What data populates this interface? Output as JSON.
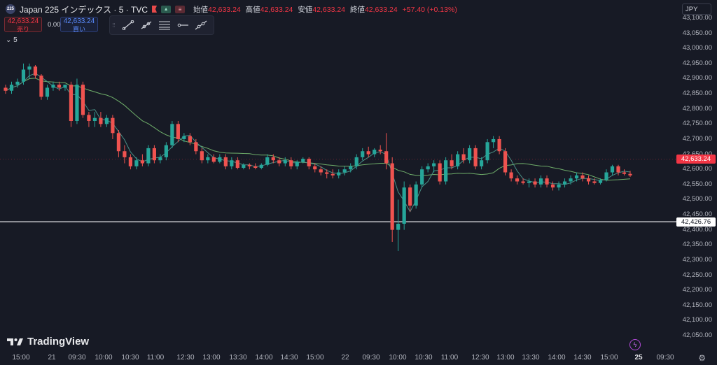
{
  "header": {
    "symbol_badge": "225",
    "title": "Japan 225 インデックス · 5 · TVC",
    "ohlc": [
      {
        "label": "始値",
        "value": "42,633.24"
      },
      {
        "label": "高値",
        "value": "42,633.24"
      },
      {
        "label": "安値",
        "value": "42,633.24"
      },
      {
        "label": "終値",
        "value": "42,633.24"
      }
    ],
    "change": "+57.40 (+0.13%)"
  },
  "trade": {
    "sell_price": "42,633.24",
    "sell_label": "売り",
    "spread": "0.00",
    "buy_price": "42,633.24",
    "buy_label": "買い"
  },
  "interval_label": "5",
  "currency": "JPY",
  "current_price_label": "42,633.24",
  "line_price_label": "42,426.76",
  "brand": "TradingView",
  "colors": {
    "up": "#26a69a",
    "down": "#ef5350",
    "ma_fast": "#4a8f86",
    "ma_slow": "#6fae6a",
    "background": "#171a25"
  },
  "chart_data": {
    "type": "candlestick",
    "ylim": [
      42025,
      43150
    ],
    "y_ticks": [
      43100,
      43050,
      43000,
      42950,
      42900,
      42850,
      42800,
      42750,
      42700,
      42650,
      42600,
      42550,
      42500,
      42450,
      42400,
      42350,
      42300,
      42250,
      42200,
      42150,
      42100,
      42050
    ],
    "y_tick_labels": [
      "43,100.00",
      "43,050.00",
      "43,000.00",
      "42,950.00",
      "42,900.00",
      "42,850.00",
      "42,800.00",
      "42,750.00",
      "42,700.00",
      "42,650.00",
      "42,600.00",
      "42,550.00",
      "42,500.00",
      "42,450.00",
      "42,400.00",
      "42,350.00",
      "42,300.00",
      "42,250.00",
      "42,200.00",
      "42,150.00",
      "42,100.00",
      "42,050.00"
    ],
    "x_labels": [
      {
        "label": "15:00",
        "bold": false
      },
      {
        "label": "21",
        "bold": false
      },
      {
        "label": "09:30",
        "bold": false
      },
      {
        "label": "10:00",
        "bold": false
      },
      {
        "label": "10:30",
        "bold": false
      },
      {
        "label": "11:00",
        "bold": false
      },
      {
        "label": "12:30",
        "bold": false
      },
      {
        "label": "13:00",
        "bold": false
      },
      {
        "label": "13:30",
        "bold": false
      },
      {
        "label": "14:00",
        "bold": false
      },
      {
        "label": "14:30",
        "bold": false
      },
      {
        "label": "15:00",
        "bold": false
      },
      {
        "label": "22",
        "bold": false
      },
      {
        "label": "09:30",
        "bold": false
      },
      {
        "label": "10:00",
        "bold": false
      },
      {
        "label": "10:30",
        "bold": false
      },
      {
        "label": "11:00",
        "bold": false
      },
      {
        "label": "12:30",
        "bold": false
      },
      {
        "label": "13:00",
        "bold": false
      },
      {
        "label": "13:30",
        "bold": false
      },
      {
        "label": "14:00",
        "bold": false
      },
      {
        "label": "14:30",
        "bold": false
      },
      {
        "label": "15:00",
        "bold": false
      },
      {
        "label": "25",
        "bold": true
      },
      {
        "label": "09:30",
        "bold": false
      }
    ],
    "current_price": 42633.24,
    "horizontal_line": 42426.76,
    "candles": [
      [
        42870,
        42880,
        42850,
        42860
      ],
      [
        42860,
        42890,
        42850,
        42880
      ],
      [
        42880,
        42900,
        42870,
        42890
      ],
      [
        42890,
        42950,
        42880,
        42930
      ],
      [
        42930,
        42950,
        42900,
        42940
      ],
      [
        42940,
        42945,
        42900,
        42910
      ],
      [
        42910,
        42915,
        42830,
        42840
      ],
      [
        42840,
        42880,
        42830,
        42870
      ],
      [
        42870,
        42890,
        42860,
        42880
      ],
      [
        42880,
        42890,
        42860,
        42870
      ],
      [
        42870,
        42880,
        42860,
        42880
      ],
      [
        42880,
        42890,
        42740,
        42760
      ],
      [
        42760,
        42900,
        42750,
        42880
      ],
      [
        42880,
        42890,
        42770,
        42780
      ],
      [
        42780,
        42790,
        42740,
        42760
      ],
      [
        42760,
        42790,
        42740,
        42770
      ],
      [
        42770,
        42790,
        42740,
        42750
      ],
      [
        42750,
        42780,
        42740,
        42770
      ],
      [
        42770,
        42780,
        42700,
        42720
      ],
      [
        42720,
        42730,
        42640,
        42660
      ],
      [
        42660,
        42680,
        42620,
        42640
      ],
      [
        42640,
        42650,
        42600,
        42610
      ],
      [
        42610,
        42640,
        42600,
        42630
      ],
      [
        42630,
        42650,
        42610,
        42620
      ],
      [
        42620,
        42680,
        42610,
        42670
      ],
      [
        42670,
        42680,
        42620,
        42630
      ],
      [
        42630,
        42650,
        42620,
        42640
      ],
      [
        42640,
        42690,
        42630,
        42680
      ],
      [
        42680,
        42760,
        42670,
        42750
      ],
      [
        42750,
        42760,
        42690,
        42700
      ],
      [
        42700,
        42720,
        42690,
        42710
      ],
      [
        42710,
        42720,
        42680,
        42690
      ],
      [
        42690,
        42700,
        42650,
        42660
      ],
      [
        42660,
        42670,
        42620,
        42630
      ],
      [
        42630,
        42650,
        42620,
        42640
      ],
      [
        42640,
        42650,
        42620,
        42625
      ],
      [
        42625,
        42650,
        42620,
        42640
      ],
      [
        42640,
        42650,
        42600,
        42610
      ],
      [
        42610,
        42640,
        42600,
        42630
      ],
      [
        42630,
        42640,
        42600,
        42605
      ],
      [
        42605,
        42620,
        42600,
        42615
      ],
      [
        42615,
        42620,
        42600,
        42610
      ],
      [
        42610,
        42620,
        42600,
        42605
      ],
      [
        42605,
        42620,
        42600,
        42615
      ],
      [
        42615,
        42650,
        42610,
        42640
      ],
      [
        42640,
        42650,
        42620,
        42630
      ],
      [
        42630,
        42640,
        42610,
        42620
      ],
      [
        42620,
        42640,
        42610,
        42630
      ],
      [
        42630,
        42640,
        42600,
        42610
      ],
      [
        42610,
        42630,
        42600,
        42625
      ],
      [
        42625,
        42640,
        42620,
        42635
      ],
      [
        42635,
        42640,
        42600,
        42610
      ],
      [
        42610,
        42620,
        42590,
        42600
      ],
      [
        42600,
        42610,
        42580,
        42590
      ],
      [
        42590,
        42600,
        42570,
        42585
      ],
      [
        42585,
        42600,
        42570,
        42580
      ],
      [
        42580,
        42600,
        42570,
        42590
      ],
      [
        42590,
        42610,
        42580,
        42600
      ],
      [
        42600,
        42620,
        42590,
        42610
      ],
      [
        42610,
        42650,
        42600,
        42640
      ],
      [
        42640,
        42670,
        42630,
        42660
      ],
      [
        42660,
        42675,
        42640,
        42650
      ],
      [
        42650,
        42670,
        42640,
        42665
      ],
      [
        42665,
        42680,
        42650,
        42660
      ],
      [
        42660,
        42720,
        42600,
        42620
      ],
      [
        42620,
        42640,
        42360,
        42400
      ],
      [
        42400,
        42500,
        42330,
        42420
      ],
      [
        42420,
        42560,
        42400,
        42540
      ],
      [
        42540,
        42550,
        42460,
        42480
      ],
      [
        42480,
        42560,
        42470,
        42550
      ],
      [
        42550,
        42610,
        42540,
        42600
      ],
      [
        42600,
        42620,
        42590,
        42610
      ],
      [
        42610,
        42630,
        42590,
        42620
      ],
      [
        42620,
        42630,
        42550,
        42560
      ],
      [
        42560,
        42640,
        42550,
        42630
      ],
      [
        42630,
        42650,
        42600,
        42610
      ],
      [
        42610,
        42660,
        42600,
        42650
      ],
      [
        42650,
        42670,
        42620,
        42630
      ],
      [
        42630,
        42680,
        42620,
        42670
      ],
      [
        42670,
        42680,
        42600,
        42610
      ],
      [
        42610,
        42640,
        42600,
        42630
      ],
      [
        42630,
        42700,
        42620,
        42690
      ],
      [
        42690,
        42710,
        42670,
        42700
      ],
      [
        42700,
        42710,
        42650,
        42660
      ],
      [
        42660,
        42670,
        42580,
        42590
      ],
      [
        42590,
        42600,
        42560,
        42570
      ],
      [
        42570,
        42580,
        42550,
        42560
      ],
      [
        42560,
        42570,
        42550,
        42555
      ],
      [
        42555,
        42570,
        42540,
        42560
      ],
      [
        42560,
        42570,
        42540,
        42550
      ],
      [
        42550,
        42580,
        42540,
        42570
      ],
      [
        42570,
        42580,
        42540,
        42550
      ],
      [
        42550,
        42560,
        42530,
        42540
      ],
      [
        42540,
        42560,
        42530,
        42550
      ],
      [
        42550,
        42570,
        42540,
        42560
      ],
      [
        42560,
        42580,
        42550,
        42570
      ],
      [
        42570,
        42590,
        42560,
        42580
      ],
      [
        42580,
        42590,
        42560,
        42570
      ],
      [
        42570,
        42580,
        42550,
        42560
      ],
      [
        42560,
        42570,
        42550,
        42555
      ],
      [
        42555,
        42570,
        42550,
        42565
      ],
      [
        42565,
        42600,
        42560,
        42590
      ],
      [
        42590,
        42615,
        42580,
        42610
      ],
      [
        42610,
        42615,
        42580,
        42590
      ],
      [
        42590,
        42600,
        42580,
        42585
      ],
      [
        42585,
        42595,
        42575,
        42580
      ]
    ]
  }
}
